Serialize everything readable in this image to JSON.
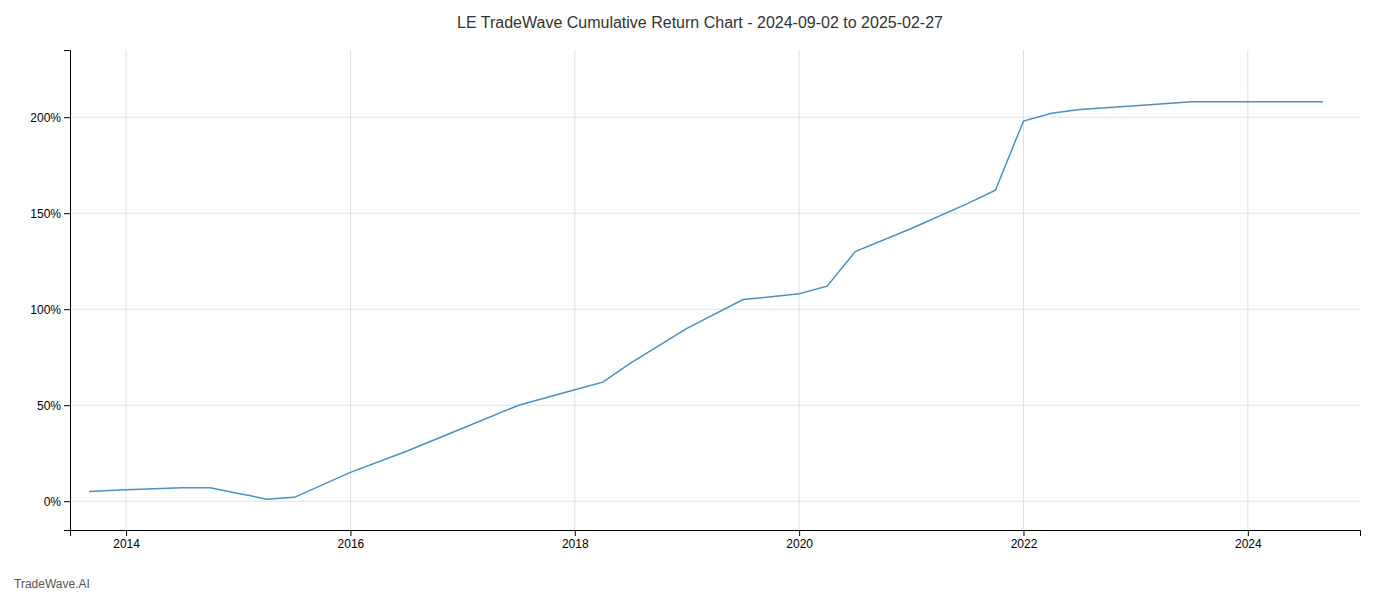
{
  "chart_data": {
    "type": "line",
    "title": "LE TradeWave Cumulative Return Chart - 2024-09-02 to 2025-02-27",
    "annotations": [
      "TradeWave.AI"
    ],
    "x": [
      2013.67,
      2014.0,
      2014.5,
      2014.75,
      2015.0,
      2015.1,
      2015.25,
      2015.5,
      2016.0,
      2016.5,
      2017.0,
      2017.5,
      2018.0,
      2018.25,
      2018.5,
      2019.0,
      2019.5,
      2020.0,
      2020.25,
      2020.5,
      2021.0,
      2021.5,
      2021.75,
      2022.0,
      2022.25,
      2022.5,
      2023.0,
      2023.5,
      2024.0,
      2024.67
    ],
    "values": [
      5,
      6,
      7,
      7,
      4,
      3,
      1,
      2,
      15,
      26,
      38,
      50,
      58,
      62,
      72,
      90,
      105,
      108,
      112,
      130,
      142,
      155,
      162,
      198,
      202,
      204,
      206,
      208,
      208,
      208
    ],
    "color": "#4a90c4",
    "xlim": [
      2013.5,
      2025.0
    ],
    "ylim": [
      -15,
      235
    ],
    "xticks": [
      2014,
      2016,
      2018,
      2020,
      2022,
      2024
    ],
    "yticks": [
      {
        "value": 0,
        "label": "0%"
      },
      {
        "value": 50,
        "label": "50%"
      },
      {
        "value": 100,
        "label": "100%"
      },
      {
        "value": 150,
        "label": "150%"
      },
      {
        "value": 200,
        "label": "200%"
      }
    ],
    "grid": true
  }
}
